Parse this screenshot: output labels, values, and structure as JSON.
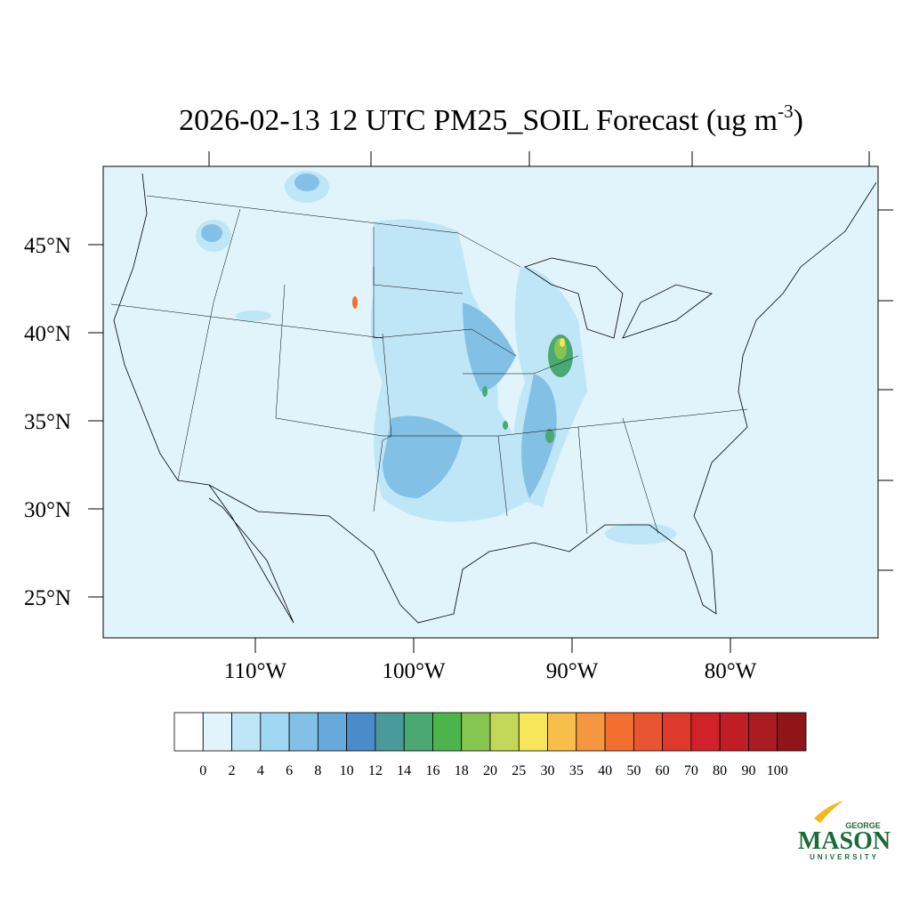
{
  "map": {
    "title": {
      "main": "2026-02-13 12 UTC PM25_SOIL Forecast (ug m",
      "exponent": "-3",
      "close": ")"
    },
    "lat_ticks": [
      {
        "value": 45,
        "label": "45°N"
      },
      {
        "value": 40,
        "label": "40°N"
      },
      {
        "value": 35,
        "label": "35°N"
      },
      {
        "value": 30,
        "label": "30°N"
      },
      {
        "value": 25,
        "label": "25°N"
      }
    ],
    "lon_ticks": [
      {
        "value": -110,
        "label": "110°W"
      },
      {
        "value": -100,
        "label": "100°W"
      },
      {
        "value": -90,
        "label": "90°W"
      },
      {
        "value": -80,
        "label": "80°W"
      }
    ],
    "colorbar": {
      "levels": [
        0,
        2,
        4,
        6,
        8,
        10,
        12,
        14,
        16,
        18,
        20,
        25,
        30,
        35,
        40,
        50,
        60,
        70,
        80,
        90,
        100
      ],
      "colors": [
        "#ffffff",
        "#e1f3fb",
        "#bfe6f7",
        "#a0d8f3",
        "#83c0e6",
        "#68a9dc",
        "#4a8bc9",
        "#4a9a9c",
        "#4aa872",
        "#4cb54a",
        "#86c54f",
        "#c3d858",
        "#f7e65a",
        "#f7be4b",
        "#f5973f",
        "#f26f30",
        "#e85530",
        "#dd3a2c",
        "#d12129",
        "#c01d25",
        "#aa1b22",
        "#8f1519"
      ]
    },
    "logo": {
      "top": "GEORGE",
      "main": "MASON",
      "bottom": "UNIVERSITY"
    }
  }
}
